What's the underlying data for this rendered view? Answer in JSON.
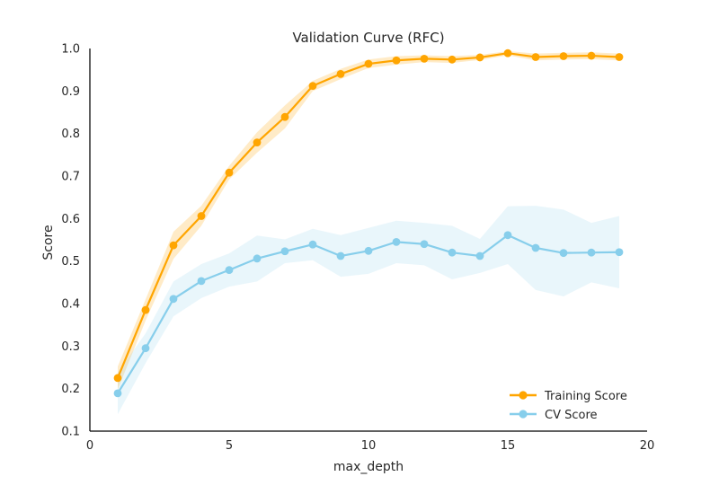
{
  "chart_data": {
    "type": "line",
    "title": "Validation Curve (RFC)",
    "xlabel": "max_depth",
    "ylabel": "Score",
    "xlim": [
      0,
      20
    ],
    "ylim": [
      0.1,
      1.0
    ],
    "xticks": [
      0,
      5,
      10,
      15,
      20
    ],
    "yticks": [
      0.1,
      0.2,
      0.3,
      0.4,
      0.5,
      0.6,
      0.7,
      0.8,
      0.9,
      1.0
    ],
    "grid": false,
    "legend_position": "lower-right",
    "x": [
      1,
      2,
      3,
      4,
      5,
      6,
      7,
      8,
      9,
      10,
      11,
      12,
      13,
      14,
      15,
      16,
      17,
      18,
      19
    ],
    "series": [
      {
        "name": "Training Score",
        "color": "#ffa500",
        "values": [
          0.225,
          0.385,
          0.537,
          0.606,
          0.708,
          0.779,
          0.839,
          0.912,
          0.94,
          0.964,
          0.972,
          0.976,
          0.974,
          0.979,
          0.989,
          0.98,
          0.982,
          0.983,
          0.98
        ],
        "lower": [
          0.198,
          0.36,
          0.505,
          0.583,
          0.692,
          0.755,
          0.812,
          0.9,
          0.928,
          0.954,
          0.962,
          0.968,
          0.966,
          0.973,
          0.984,
          0.972,
          0.974,
          0.975,
          0.972
        ],
        "upper": [
          0.252,
          0.41,
          0.569,
          0.63,
          0.724,
          0.803,
          0.866,
          0.924,
          0.952,
          0.974,
          0.982,
          0.984,
          0.982,
          0.985,
          0.994,
          0.988,
          0.99,
          0.991,
          0.988
        ]
      },
      {
        "name": "CV Score",
        "color": "#87ceeb",
        "values": [
          0.189,
          0.295,
          0.411,
          0.453,
          0.479,
          0.506,
          0.523,
          0.539,
          0.512,
          0.524,
          0.545,
          0.54,
          0.52,
          0.512,
          0.561,
          0.531,
          0.519,
          0.52,
          0.521
        ],
        "lower": [
          0.14,
          0.26,
          0.37,
          0.413,
          0.44,
          0.452,
          0.495,
          0.502,
          0.463,
          0.47,
          0.495,
          0.49,
          0.457,
          0.472,
          0.493,
          0.432,
          0.417,
          0.45,
          0.436
        ],
        "upper": [
          0.238,
          0.33,
          0.452,
          0.493,
          0.518,
          0.56,
          0.551,
          0.576,
          0.561,
          0.578,
          0.595,
          0.59,
          0.583,
          0.552,
          0.629,
          0.63,
          0.621,
          0.59,
          0.606
        ]
      }
    ]
  }
}
